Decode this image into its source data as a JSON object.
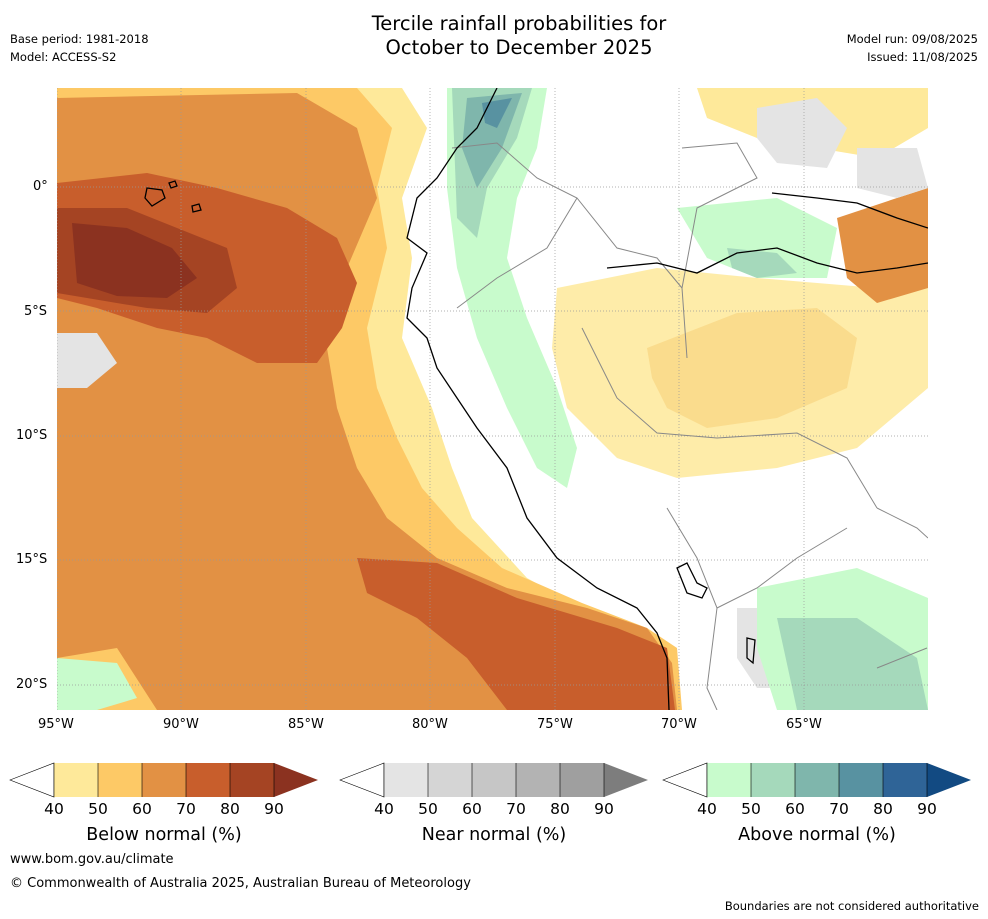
{
  "header": {
    "title_line1": "Tercile rainfall probabilities for",
    "title_line2": "October to December 2025",
    "base_period": "Base period: 1981-2018",
    "model": "Model: ACCESS-S2",
    "model_run": "Model run: 09/08/2025",
    "issued": "Issued: 11/08/2025"
  },
  "map": {
    "lon_labels": [
      "95°W",
      "90°W",
      "85°W",
      "80°W",
      "75°W",
      "70°W",
      "65°W"
    ],
    "lat_labels": [
      "0°",
      "5°S",
      "10°S",
      "15°S",
      "20°S"
    ],
    "coastline_color": "#000000",
    "border_color": "#888888",
    "gridline_color": "#999999"
  },
  "legend": {
    "below": {
      "caption": "Below normal (%)",
      "ticks": [
        "40",
        "50",
        "60",
        "70",
        "80",
        "90"
      ],
      "colors": [
        "#fee99a",
        "#fdc966",
        "#e29144",
        "#c85e2c",
        "#a54423",
        "#8b3220"
      ]
    },
    "near": {
      "caption": "Near normal (%)",
      "ticks": [
        "40",
        "50",
        "60",
        "70",
        "80",
        "90"
      ],
      "colors": [
        "#e4e4e4",
        "#d5d5d5",
        "#c6c6c6",
        "#b3b3b3",
        "#9f9f9f",
        "#7d7d7d"
      ]
    },
    "above": {
      "caption": "Above normal (%)",
      "ticks": [
        "40",
        "50",
        "60",
        "70",
        "80",
        "90"
      ],
      "colors": [
        "#c8fbcc",
        "#a5d9bb",
        "#7fb6ac",
        "#5892a1",
        "#2f6497",
        "#124a82"
      ]
    }
  },
  "footer": {
    "website": "www.bom.gov.au/climate",
    "copyright": "© Commonwealth of Australia 2025, Australian Bureau of Meteorology",
    "disclaimer": "Boundaries are not considered authoritative"
  }
}
